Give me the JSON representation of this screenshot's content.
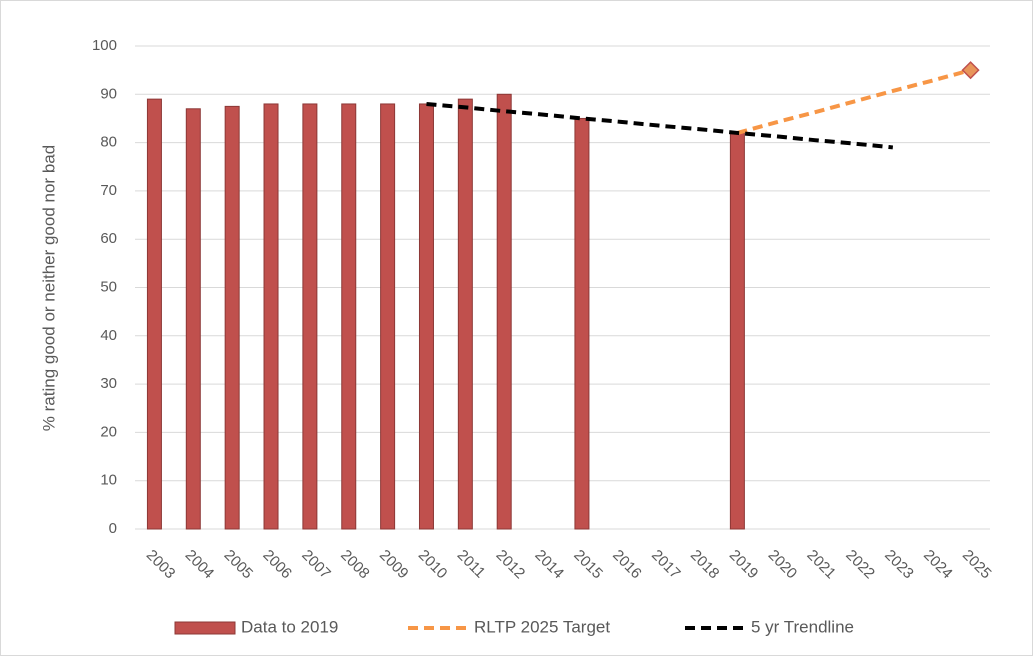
{
  "chart_data": {
    "type": "bar",
    "y_label": "% rating good or neither good nor bad",
    "categories": [
      "2003",
      "2004",
      "2005",
      "2006",
      "2007",
      "2008",
      "2009",
      "2010",
      "2011",
      "2012",
      "2014",
      "2015",
      "2016",
      "2017",
      "2018",
      "2019",
      "2020",
      "2021",
      "2022",
      "2023",
      "2024",
      "2025"
    ],
    "series": [
      {
        "name": "Data to 2019",
        "type": "bar",
        "color": "#c0504d",
        "values": [
          89,
          87,
          87.5,
          88,
          88,
          88,
          88,
          88,
          89,
          90,
          null,
          85,
          null,
          null,
          null,
          82,
          null,
          null,
          null,
          null,
          null,
          null
        ]
      },
      {
        "name": "RLTP 2025 Target",
        "type": "line",
        "color": "#f79646",
        "dashed": true,
        "values": [
          null,
          null,
          null,
          null,
          null,
          null,
          null,
          null,
          null,
          null,
          null,
          null,
          null,
          null,
          null,
          82,
          84.2,
          86.3,
          88.5,
          90.7,
          92.8,
          95
        ]
      },
      {
        "name": "5 yr Trendline",
        "type": "line",
        "color": "#000000",
        "dashed": true,
        "values": [
          null,
          null,
          null,
          null,
          null,
          null,
          null,
          88,
          87.3,
          86.5,
          85.8,
          85,
          84.3,
          83.5,
          82.8,
          82,
          81.3,
          80.5,
          79.8,
          79,
          null,
          null
        ]
      }
    ],
    "ylim": [
      0,
      100
    ],
    "yticks": [
      0,
      10,
      20,
      30,
      40,
      50,
      60,
      70,
      80,
      90,
      100
    ],
    "grid": true,
    "legend": "bottom"
  }
}
